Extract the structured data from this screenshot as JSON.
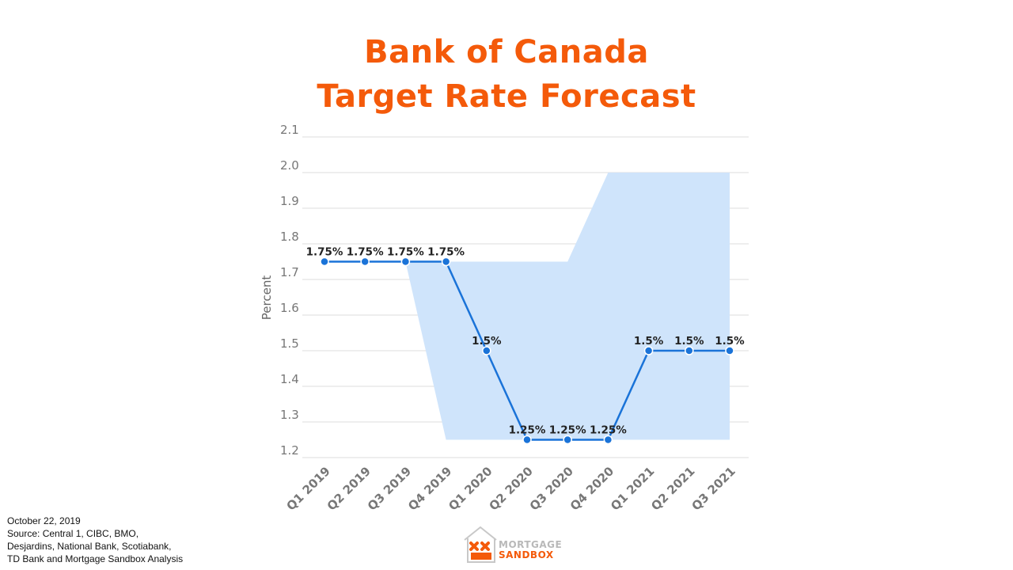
{
  "title": {
    "line1": "Bank of Canada",
    "line2": "Target Rate Forecast"
  },
  "chart_data": {
    "type": "line",
    "ylabel": "Percent",
    "xlabel": "",
    "ylim": [
      1.2,
      2.1
    ],
    "yticks": [
      1.2,
      1.3,
      1.4,
      1.5,
      1.6,
      1.7,
      1.8,
      1.9,
      2.0,
      2.1
    ],
    "ytick_labels": [
      "1.2",
      "1.3",
      "1.4",
      "1.5",
      "1.6",
      "1.7",
      "1.8",
      "1.9",
      "2.0",
      "2.1"
    ],
    "grid": true,
    "categories": [
      "Q1 2019",
      "Q2 2019",
      "Q3 2019",
      "Q4 2019",
      "Q1 2020",
      "Q2 2020",
      "Q3 2020",
      "Q4 2020",
      "Q1 2021",
      "Q2 2021",
      "Q3 2021"
    ],
    "series": [
      {
        "values": [
          1.75,
          1.75,
          1.75,
          1.75,
          1.5,
          1.25,
          1.25,
          1.25,
          1.5,
          1.5,
          1.5
        ],
        "labels": [
          "1.75%",
          "1.75%",
          "1.75%",
          "1.75%",
          "1.5%",
          "1.25%",
          "1.25%",
          "1.25%",
          "1.5%",
          "1.5%",
          "1.5%"
        ],
        "color": "#1a73d8"
      }
    ],
    "forecast_range": {
      "categories": [
        "Q3 2019",
        "Q4 2019",
        "Q1 2020",
        "Q2 2020",
        "Q3 2020",
        "Q4 2020",
        "Q1 2021",
        "Q2 2021",
        "Q3 2021"
      ],
      "low": [
        1.75,
        1.25,
        1.25,
        1.25,
        1.25,
        1.25,
        1.25,
        1.25,
        1.25
      ],
      "high": [
        1.75,
        1.75,
        1.75,
        1.75,
        1.75,
        2.0,
        2.0,
        2.0,
        2.0
      ],
      "color": "#cfe4fb"
    }
  },
  "footnote": {
    "line1": "October 22, 2019",
    "line2": "Source: Central  1, CIBC,  BMO,",
    "line3": "Desjardins, National Bank, Scotiabank,",
    "line4": "TD Bank and Mortgage Sandbox Analysis"
  },
  "logo": {
    "top": "MORTGAGE",
    "bottom": "SANDBOX"
  },
  "colors": {
    "accent": "#f45a0a",
    "line": "#1a73d8",
    "band": "#cfe4fb",
    "grid": "#e3e3e3",
    "tick_text": "#777777"
  }
}
